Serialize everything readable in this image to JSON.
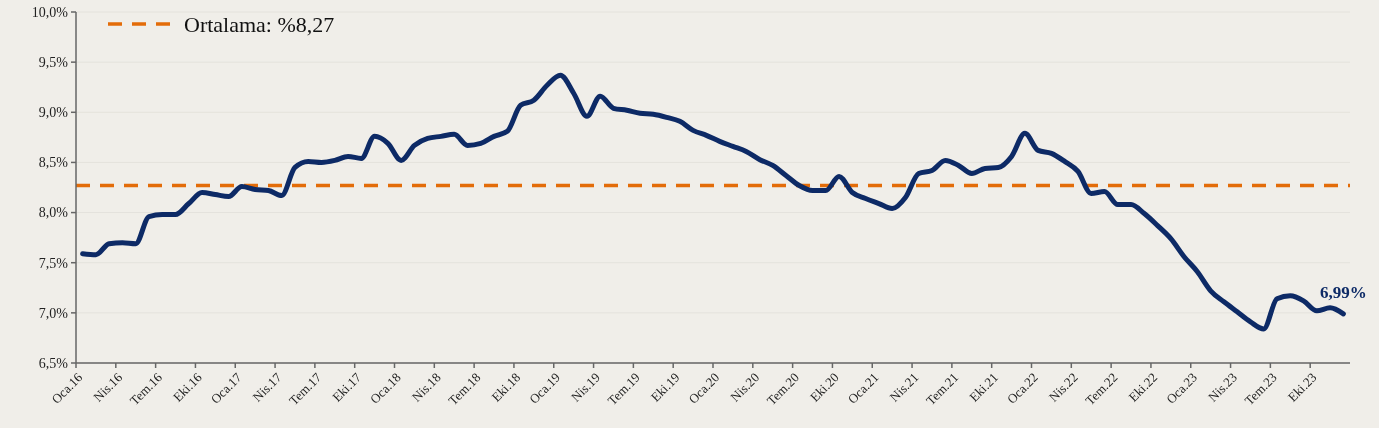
{
  "chart_data": {
    "type": "line",
    "categories": [
      "Oca.16",
      null,
      null,
      "Nis.16",
      null,
      null,
      "Tem.16",
      null,
      null,
      "Eki.16",
      null,
      null,
      "Oca.17",
      null,
      null,
      "Nis.17",
      null,
      null,
      "Tem.17",
      null,
      null,
      "Eki.17",
      null,
      null,
      "Oca.18",
      null,
      null,
      "Nis.18",
      null,
      null,
      "Tem.18",
      null,
      null,
      "Eki.18",
      null,
      null,
      "Oca.19",
      null,
      null,
      "Nis.19",
      null,
      null,
      "Tem.19",
      null,
      null,
      "Eki.19",
      null,
      null,
      "Oca.20",
      null,
      null,
      "Nis.20",
      null,
      null,
      "Tem.20",
      null,
      null,
      "Eki.20",
      null,
      null,
      "Oca.21",
      null,
      null,
      "Nis.21",
      null,
      null,
      "Tem.21",
      null,
      null,
      "Eki.21",
      null,
      null,
      "Oca.22",
      null,
      null,
      "Nis.22",
      null,
      null,
      "Tem.22",
      null,
      null,
      "Eki.22",
      null,
      null,
      "Oca.23",
      null,
      null,
      "Nis.23",
      null,
      null,
      "Tem.23",
      null,
      null,
      "Eki.23",
      null,
      null
    ],
    "series": [
      {
        "color": "#0d2a66",
        "values": [
          7.59,
          7.58,
          7.69,
          7.7,
          7.69,
          7.96,
          7.98,
          7.98,
          8.09,
          8.2,
          8.18,
          8.16,
          8.26,
          8.23,
          8.22,
          8.17,
          8.45,
          8.51,
          8.5,
          8.52,
          8.56,
          8.54,
          8.76,
          8.69,
          8.52,
          8.67,
          8.74,
          8.76,
          8.78,
          8.67,
          8.69,
          8.76,
          8.81,
          9.07,
          9.12,
          9.27,
          9.37,
          9.19,
          8.96,
          9.16,
          9.04,
          9.02,
          8.99,
          8.98,
          8.95,
          8.91,
          8.82,
          8.77,
          8.71,
          8.66,
          8.61,
          8.53,
          8.47,
          8.37,
          8.27,
          8.22,
          8.22,
          8.36,
          8.2,
          8.14,
          8.09,
          8.04,
          8.15,
          8.39,
          8.42,
          8.52,
          8.47,
          8.39,
          8.44,
          8.45,
          8.56,
          8.79,
          8.62,
          8.59,
          8.51,
          8.41,
          8.19,
          8.21,
          8.08,
          8.08,
          7.99,
          7.87,
          7.74,
          7.56,
          7.41,
          7.22,
          7.11,
          7.01,
          6.91,
          6.84,
          7.14,
          7.17,
          7.12,
          7.02,
          7.05,
          6.99
        ],
        "value_labels": [
          null,
          null,
          null,
          null,
          null,
          null,
          null,
          null,
          null,
          null,
          null,
          null,
          null,
          null,
          null,
          null,
          null,
          null,
          null,
          null,
          null,
          null,
          null,
          null,
          null,
          null,
          null,
          null,
          null,
          null,
          null,
          null,
          null,
          null,
          null,
          null,
          null,
          null,
          null,
          null,
          null,
          null,
          null,
          null,
          null,
          null,
          null,
          null,
          null,
          null,
          null,
          null,
          null,
          null,
          null,
          null,
          null,
          null,
          null,
          null,
          null,
          null,
          null,
          null,
          null,
          null,
          null,
          null,
          null,
          null,
          null,
          null,
          null,
          null,
          null,
          null,
          null,
          null,
          null,
          null,
          null,
          null,
          null,
          null,
          null,
          null,
          null,
          null,
          null,
          null,
          null,
          null,
          null,
          null,
          null,
          "6,99%"
        ]
      }
    ],
    "ylim": [
      6.5,
      10
    ],
    "yticks": [
      {
        "value": 6.5,
        "label": "6,5%"
      },
      {
        "value": 7,
        "label": "7,0%"
      },
      {
        "value": 7.5,
        "label": "7,5%"
      },
      {
        "value": 8,
        "label": "8,0%"
      },
      {
        "value": 8.5,
        "label": "8,5%"
      },
      {
        "value": 9,
        "label": "9,0%"
      },
      {
        "value": 9.5,
        "label": "9,5%"
      },
      {
        "value": 10,
        "label": "10,0%"
      }
    ],
    "ref_lines": [
      {
        "axis": "y",
        "value": 8.27,
        "label": "Ortalama: %8,27",
        "color": "#e36c09",
        "line_style": "dashed"
      }
    ],
    "grid": "y",
    "legend": "top left",
    "marker": "none",
    "line_style": "solid"
  }
}
